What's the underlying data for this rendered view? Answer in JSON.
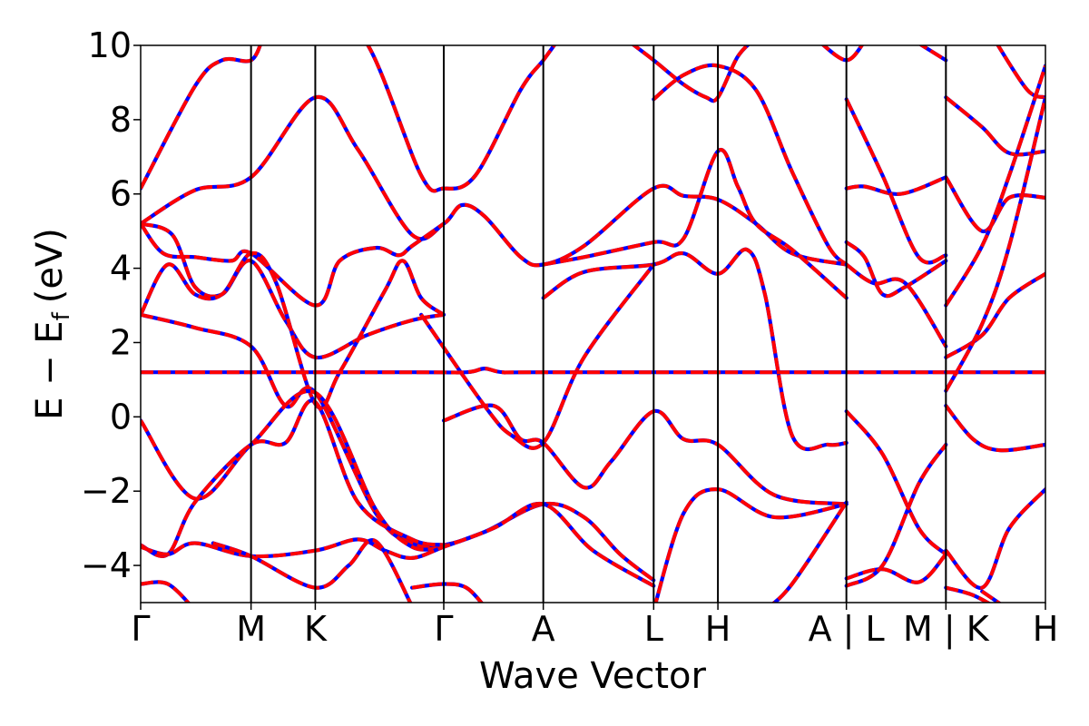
{
  "chart_data": {
    "type": "line",
    "xlabel": "Wave Vector",
    "ylabel": {
      "main": "E − E",
      "sub": "f",
      "unit": "(eV)"
    },
    "ylim": [
      -5,
      10
    ],
    "grid": false,
    "legend": "none",
    "y_ticks": [
      10,
      8,
      6,
      4,
      2,
      0,
      -2,
      -4
    ],
    "y_tick_labels": [
      "10",
      "8",
      "6",
      "4",
      "2",
      "0",
      "−2",
      "−4"
    ],
    "x_ticks": [
      {
        "label": "Γ",
        "k": 0.0
      },
      {
        "label": "M",
        "k": 0.122
      },
      {
        "label": "K",
        "k": 0.193
      },
      {
        "label": "Γ",
        "k": 0.335
      },
      {
        "label": "A",
        "k": 0.445
      },
      {
        "label": "L",
        "k": 0.567
      },
      {
        "label": "H",
        "k": 0.638
      },
      {
        "label": "A | L",
        "k": 0.78
      },
      {
        "label": "M | K",
        "k": 0.89
      },
      {
        "label": "H",
        "k": 1.0
      }
    ],
    "breaks": [
      0.78,
      0.89
    ],
    "colors": {
      "series_a": "#0000ff",
      "series_b": "#ff0000",
      "axes": "#000000"
    },
    "bands": [
      [
        [
          0,
          6.15
        ],
        [
          0.06,
          8.9
        ],
        [
          0.09,
          9.6
        ],
        [
          0.122,
          9.6
        ],
        [
          0.135,
          10.2
        ]
      ],
      [
        [
          0.2,
          10.7
        ],
        [
          0.25,
          10.05
        ],
        [
          0.31,
          6.5
        ],
        [
          0.335,
          6.15
        ],
        [
          0.37,
          6.5
        ],
        [
          0.42,
          8.8
        ],
        [
          0.445,
          9.6
        ],
        [
          0.46,
          10.1
        ]
      ],
      [
        [
          0.54,
          10.1
        ],
        [
          0.567,
          9.6
        ],
        [
          0.6,
          8.95
        ],
        [
          0.625,
          8.6
        ],
        [
          0.638,
          8.6
        ],
        [
          0.66,
          9.7
        ],
        [
          0.68,
          10.2
        ]
      ],
      [
        [
          0.567,
          8.55
        ],
        [
          0.6,
          9.2
        ],
        [
          0.638,
          9.45
        ],
        [
          0.68,
          8.8
        ],
        [
          0.72,
          6.6
        ],
        [
          0.76,
          4.6
        ],
        [
          0.78,
          4.1
        ]
      ],
      [
        [
          0.75,
          10.1
        ],
        [
          0.78,
          9.6
        ],
        [
          0.8,
          10.1
        ]
      ],
      [
        [
          0.857,
          10.1
        ],
        [
          0.89,
          9.6
        ]
      ],
      [
        [
          0.945,
          10.1
        ],
        [
          0.98,
          8.8
        ],
        [
          1.0,
          8.6
        ]
      ],
      [
        [
          0,
          5.2
        ],
        [
          0.06,
          6.1
        ],
        [
          0.122,
          6.45
        ],
        [
          0.193,
          8.6
        ],
        [
          0.24,
          7.2
        ],
        [
          0.3,
          4.9
        ],
        [
          0.335,
          5.2
        ],
        [
          0.355,
          5.7
        ],
        [
          0.38,
          5.4
        ],
        [
          0.42,
          4.3
        ],
        [
          0.445,
          4.1
        ],
        [
          0.49,
          4.6
        ],
        [
          0.567,
          6.15
        ],
        [
          0.6,
          5.95
        ],
        [
          0.638,
          5.85
        ],
        [
          0.68,
          5.2
        ],
        [
          0.72,
          4.4
        ],
        [
          0.78,
          4.1
        ]
      ],
      [
        [
          0,
          5.2
        ],
        [
          0.025,
          4.4
        ],
        [
          0.06,
          4.3
        ],
        [
          0.1,
          4.2
        ],
        [
          0.122,
          4.4
        ],
        [
          0.193,
          3.0
        ],
        [
          0.22,
          4.2
        ],
        [
          0.26,
          4.55
        ],
        [
          0.285,
          4.35
        ],
        [
          0.3,
          4.6
        ],
        [
          0.335,
          5.2
        ]
      ],
      [
        [
          0,
          5.2
        ],
        [
          0.035,
          4.9
        ],
        [
          0.06,
          3.5
        ],
        [
          0.09,
          3.3
        ],
        [
          0.122,
          4.2
        ],
        [
          0.16,
          2.6
        ],
        [
          0.193,
          1.6
        ],
        [
          0.25,
          2.2
        ],
        [
          0.3,
          2.6
        ],
        [
          0.335,
          2.75
        ]
      ],
      [
        [
          0,
          2.75
        ],
        [
          0.03,
          4.1
        ],
        [
          0.06,
          3.3
        ],
        [
          0.09,
          3.3
        ],
        [
          0.122,
          4.4
        ],
        [
          0.15,
          3.6
        ],
        [
          0.193,
          0.35
        ],
        [
          0.22,
          1.2
        ],
        [
          0.27,
          3.4
        ],
        [
          0.29,
          4.2
        ],
        [
          0.31,
          3.2
        ],
        [
          0.335,
          2.75
        ]
      ],
      [
        [
          0,
          2.75
        ],
        [
          0.06,
          2.4
        ],
        [
          0.122,
          1.9
        ],
        [
          0.16,
          0.3
        ],
        [
          0.193,
          0.65
        ],
        [
          0.26,
          -2.6
        ],
        [
          0.3,
          -3.4
        ],
        [
          0.335,
          -3.45
        ],
        [
          0.38,
          -3.1
        ],
        [
          0.445,
          -2.35
        ],
        [
          0.49,
          -2.7
        ],
        [
          0.53,
          -3.7
        ],
        [
          0.567,
          -4.4
        ]
      ],
      [
        [
          0.445,
          4.1
        ],
        [
          0.49,
          4.3
        ],
        [
          0.567,
          4.7
        ],
        [
          0.6,
          4.8
        ],
        [
          0.638,
          7.15
        ],
        [
          0.66,
          6.2
        ],
        [
          0.68,
          5.2
        ],
        [
          0.72,
          4.5
        ],
        [
          0.78,
          3.2
        ]
      ],
      [
        [
          0.445,
          3.2
        ],
        [
          0.49,
          3.9
        ],
        [
          0.567,
          4.1
        ],
        [
          0.6,
          4.4
        ],
        [
          0.638,
          3.85
        ],
        [
          0.67,
          4.5
        ],
        [
          0.69,
          3.3
        ],
        [
          0.72,
          -0.5
        ],
        [
          0.76,
          -0.75
        ],
        [
          0.78,
          -0.7
        ]
      ],
      [
        [
          0.335,
          -0.1
        ],
        [
          0.39,
          0.3
        ],
        [
          0.42,
          -0.6
        ],
        [
          0.445,
          -0.7
        ],
        [
          0.49,
          -1.9
        ],
        [
          0.52,
          -1.2
        ],
        [
          0.567,
          0.15
        ],
        [
          0.6,
          -0.6
        ],
        [
          0.638,
          -0.75
        ],
        [
          0.7,
          -2.1
        ],
        [
          0.78,
          -2.35
        ]
      ],
      [
        [
          0.31,
          2.75
        ],
        [
          0.38,
          0.3
        ],
        [
          0.41,
          -0.5
        ],
        [
          0.445,
          -0.7
        ],
        [
          0.49,
          1.6
        ],
        [
          0.567,
          4.1
        ]
      ],
      [
        [
          0,
          1.2
        ],
        [
          0.3,
          1.2
        ],
        [
          0.36,
          1.2
        ],
        [
          0.38,
          1.3
        ],
        [
          0.4,
          1.2
        ],
        [
          0.445,
          1.2
        ],
        [
          0.78,
          1.2
        ]
      ],
      [
        [
          0,
          -0.1
        ],
        [
          0.06,
          -2.2
        ],
        [
          0.122,
          -0.75
        ],
        [
          0.193,
          0.65
        ],
        [
          0.26,
          -2.5
        ],
        [
          0.3,
          -3.5
        ],
        [
          0.335,
          -3.5
        ]
      ],
      [
        [
          0,
          -3.45
        ],
        [
          0.03,
          -3.7
        ],
        [
          0.06,
          -2.3
        ],
        [
          0.122,
          -0.75
        ],
        [
          0.16,
          -0.7
        ],
        [
          0.193,
          0.4
        ],
        [
          0.24,
          -2.3
        ],
        [
          0.3,
          -3.3
        ],
        [
          0.335,
          -3.45
        ]
      ],
      [
        [
          0,
          -3.5
        ],
        [
          0.03,
          -3.7
        ],
        [
          0.06,
          -3.4
        ],
        [
          0.122,
          -3.75
        ],
        [
          0.193,
          -3.6
        ],
        [
          0.24,
          -3.3
        ],
        [
          0.27,
          -3.6
        ],
        [
          0.3,
          -3.8
        ],
        [
          0.335,
          -3.5
        ],
        [
          0.39,
          -3.0
        ],
        [
          0.445,
          -2.35
        ],
        [
          0.5,
          -3.6
        ],
        [
          0.567,
          -4.55
        ]
      ],
      [
        [
          0,
          -4.5
        ],
        [
          0.03,
          -4.5
        ],
        [
          0.06,
          -5.2
        ]
      ],
      [
        [
          0.08,
          -3.4
        ],
        [
          0.122,
          -3.75
        ],
        [
          0.193,
          -4.6
        ],
        [
          0.23,
          -4.0
        ],
        [
          0.26,
          -3.35
        ],
        [
          0.3,
          -5.1
        ]
      ],
      [
        [
          0.3,
          -4.6
        ],
        [
          0.335,
          -4.5
        ],
        [
          0.36,
          -4.6
        ],
        [
          0.38,
          -5.1
        ]
      ],
      [
        [
          0.567,
          -5.2
        ],
        [
          0.6,
          -2.6
        ],
        [
          0.638,
          -1.95
        ],
        [
          0.7,
          -2.7
        ],
        [
          0.78,
          -2.35
        ]
      ],
      [
        [
          0.69,
          -5.2
        ],
        [
          0.72,
          -4.5
        ],
        [
          0.78,
          -2.3
        ]
      ],
      [
        [
          0.78,
          6.15
        ],
        [
          0.8,
          6.2
        ],
        [
          0.84,
          6.0
        ],
        [
          0.89,
          6.45
        ]
      ],
      [
        [
          0.78,
          8.55
        ],
        [
          0.82,
          6.5
        ],
        [
          0.86,
          4.3
        ],
        [
          0.89,
          4.35
        ]
      ],
      [
        [
          0.78,
          4.7
        ],
        [
          0.8,
          4.3
        ],
        [
          0.82,
          3.3
        ],
        [
          0.845,
          3.5
        ],
        [
          0.89,
          4.2
        ]
      ],
      [
        [
          0.78,
          4.1
        ],
        [
          0.81,
          3.6
        ],
        [
          0.845,
          3.6
        ],
        [
          0.89,
          1.9
        ]
      ],
      [
        [
          0.78,
          0.15
        ],
        [
          0.82,
          -1.0
        ],
        [
          0.86,
          -3.0
        ],
        [
          0.89,
          -3.7
        ]
      ],
      [
        [
          0.78,
          -4.35
        ],
        [
          0.82,
          -4.1
        ],
        [
          0.86,
          -4.45
        ],
        [
          0.89,
          -3.7
        ]
      ],
      [
        [
          0.78,
          -4.55
        ],
        [
          0.82,
          -4.0
        ],
        [
          0.86,
          -1.8
        ],
        [
          0.89,
          -0.75
        ]
      ],
      [
        [
          0.78,
          1.2
        ],
        [
          0.89,
          1.2
        ]
      ],
      [
        [
          0.89,
          8.6
        ],
        [
          0.93,
          7.8
        ],
        [
          0.96,
          7.1
        ],
        [
          1.0,
          7.15
        ]
      ],
      [
        [
          0.89,
          6.45
        ],
        [
          0.93,
          5.0
        ],
        [
          0.96,
          5.9
        ],
        [
          1.0,
          5.9
        ]
      ],
      [
        [
          0.89,
          3.0
        ],
        [
          0.93,
          4.6
        ],
        [
          0.96,
          6.5
        ],
        [
          1.0,
          9.45
        ]
      ],
      [
        [
          0.89,
          1.6
        ],
        [
          0.93,
          2.2
        ],
        [
          0.96,
          3.2
        ],
        [
          1.0,
          3.85
        ]
      ],
      [
        [
          0.89,
          0.7
        ],
        [
          0.93,
          2.5
        ],
        [
          0.96,
          4.6
        ],
        [
          1.0,
          8.6
        ]
      ],
      [
        [
          0.89,
          0.3
        ],
        [
          0.92,
          -0.6
        ],
        [
          0.95,
          -0.9
        ],
        [
          1.0,
          -0.75
        ]
      ],
      [
        [
          0.89,
          1.2
        ],
        [
          1.0,
          1.2
        ]
      ],
      [
        [
          0.89,
          -3.6
        ],
        [
          0.93,
          -4.6
        ],
        [
          0.96,
          -3.0
        ],
        [
          1.0,
          -1.95
        ]
      ],
      [
        [
          0.89,
          -4.6
        ],
        [
          0.92,
          -4.8
        ],
        [
          0.95,
          -5.2
        ]
      ],
      [
        [
          0.93,
          -4.7
        ],
        [
          0.96,
          -5.2
        ]
      ]
    ]
  }
}
